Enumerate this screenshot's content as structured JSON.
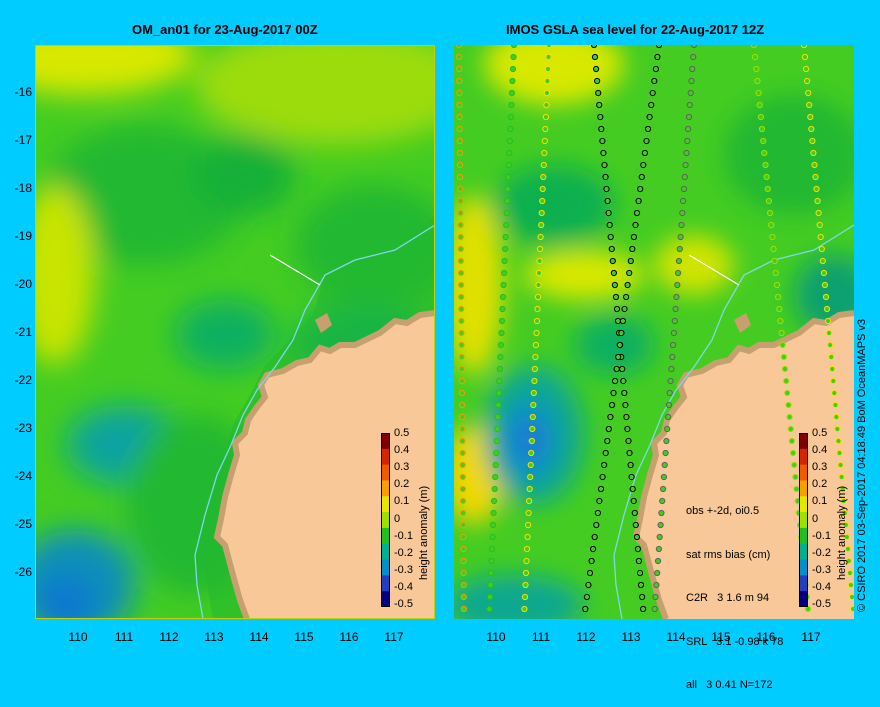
{
  "left_panel": {
    "title": "OM_an01 for 23-Aug-2017 00Z",
    "colorbar_label": "height anomaly (m)"
  },
  "right_panel": {
    "title": "IMOS GSLA sea level  for 22-Aug-2017 12Z",
    "colorbar_label": "height anomaly (m)",
    "stats": {
      "line1": "obs +-2d, oi0.5",
      "line2": "sat rms bias (cm)",
      "line3": "C2R   3 1.6 m 94",
      "line4": "SRL   3.1 -0.98 k 78",
      "line5": "all   3 0.41 N=172"
    }
  },
  "axes": {
    "y_ticks": [
      "-16",
      "-17",
      "-18",
      "-19",
      "-20",
      "-21",
      "-22",
      "-23",
      "-24",
      "-25",
      "-26"
    ],
    "x_ticks": [
      "110",
      "111",
      "112",
      "113",
      "114",
      "115",
      "116",
      "117"
    ]
  },
  "colorbar": {
    "ticks": [
      "0.5",
      "0.4",
      "0.3",
      "0.2",
      "0.1",
      "0",
      "-0.1",
      "-0.2",
      "-0.3",
      "-0.4",
      "-0.5"
    ],
    "colors": [
      "#800000",
      "#d42400",
      "#f05a00",
      "#f8a000",
      "#e6e600",
      "#a0e000",
      "#20c020",
      "#00b090",
      "#0090d0",
      "#2040c0",
      "#000080"
    ]
  },
  "credit": "© CSIRO 2017   03-Sep-2017 04:18:49 BoM OceanMAPS v3",
  "palette": {
    "background": "#00ccff",
    "land": "#f8c898",
    "shelf": "#c8a070",
    "ocean_base": "#44cc22",
    "coast_line": "#7fd8e8"
  }
}
